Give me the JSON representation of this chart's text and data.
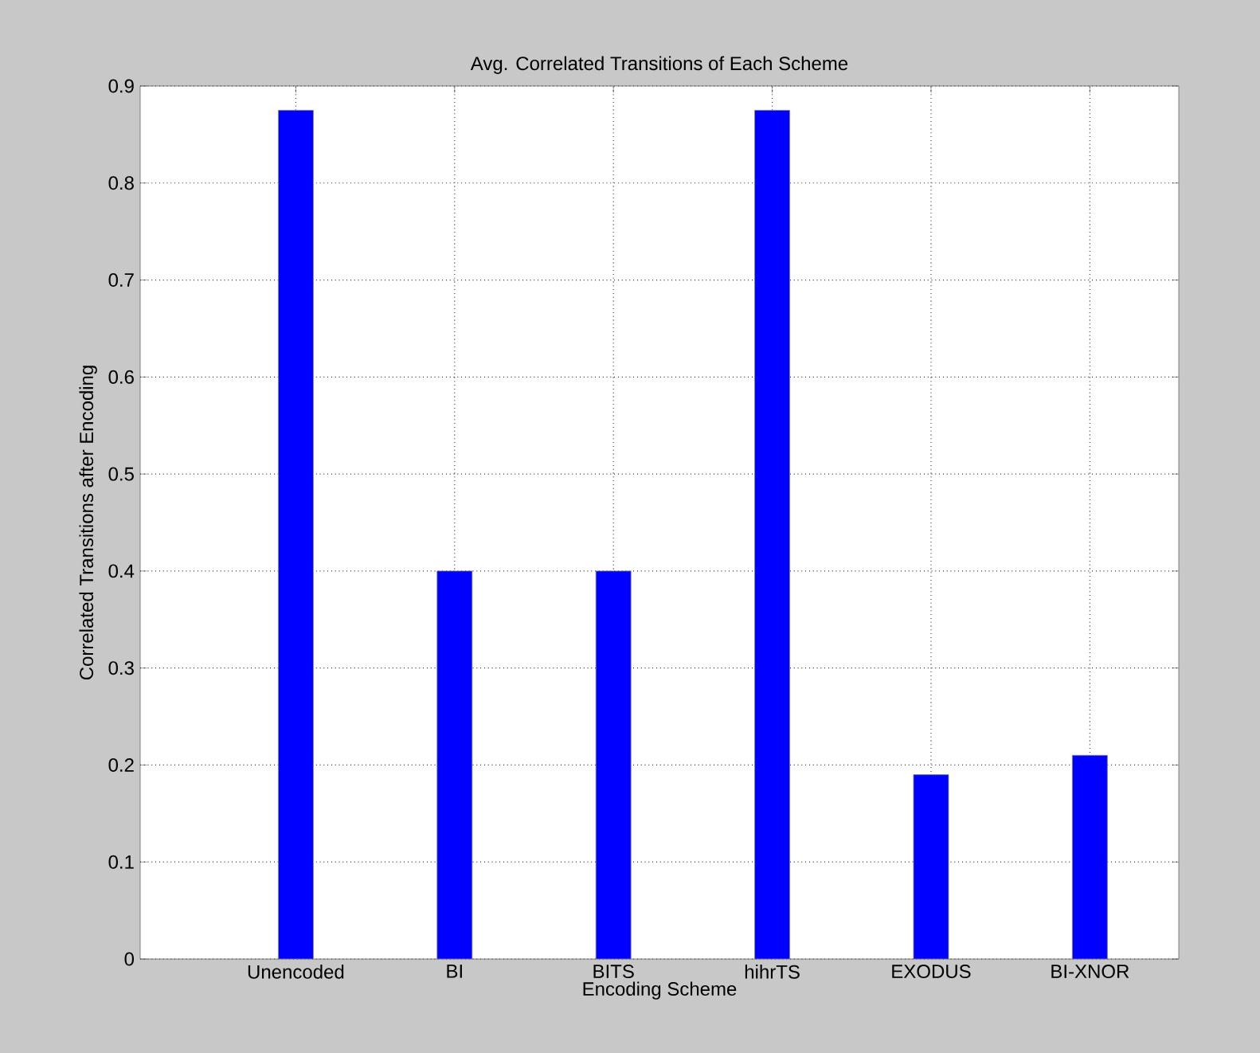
{
  "chart_data": {
    "type": "bar",
    "title": "Avg. Correlated Transitions of Each Scheme",
    "xlabel": "Encoding Scheme",
    "ylabel": "Correlated Transitions after Encoding",
    "categories": [
      "Unencoded",
      "BI",
      "BITS",
      "hihrTS",
      "EXODUS",
      "BI-XNOR"
    ],
    "values": [
      0.875,
      0.4,
      0.4,
      0.875,
      0.19,
      0.21
    ],
    "color": "#0000ff",
    "ylim": [
      0,
      0.9
    ],
    "yticks": [
      0,
      0.1,
      0.2,
      0.3,
      0.4,
      0.5,
      0.6,
      0.7,
      0.8,
      0.9
    ],
    "grid": true
  }
}
